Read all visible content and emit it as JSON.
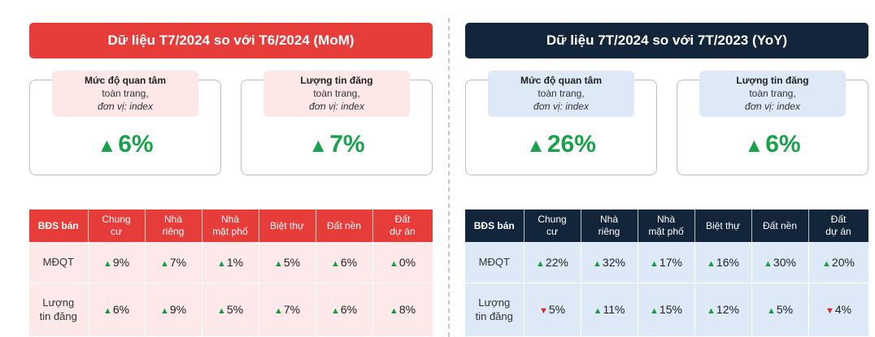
{
  "mom": {
    "title": "Dữ liệu T7/2024 so với T6/2024 (MoM)",
    "cards": [
      {
        "label1": "Mức độ quan tâm",
        "label2": "toàn trang,",
        "label3": "đơn vị: index",
        "arrow": "▲",
        "value": "6%"
      },
      {
        "label1": "Lượng tin đăng",
        "label2": "toàn trang,",
        "label3": "đơn vị: index",
        "arrow": "▲",
        "value": "7%"
      }
    ],
    "headers": [
      "BĐS bán",
      "Chung\ncư",
      "Nhà\nriêng",
      "Nhà\nmặt phố",
      "Biệt thự",
      "Đất nền",
      "Đất\ndự án"
    ],
    "rows": [
      {
        "label": "MĐQT",
        "cells": [
          {
            "dir": "up",
            "arrow": "▲",
            "value": "9%"
          },
          {
            "dir": "up",
            "arrow": "▲",
            "value": "7%"
          },
          {
            "dir": "up",
            "arrow": "▲",
            "value": "1%"
          },
          {
            "dir": "up",
            "arrow": "▲",
            "value": "5%"
          },
          {
            "dir": "up",
            "arrow": "▲",
            "value": "6%"
          },
          {
            "dir": "up",
            "arrow": "▲",
            "value": "0%"
          }
        ]
      },
      {
        "label": "Lượng\ntin đăng",
        "cells": [
          {
            "dir": "up",
            "arrow": "▲",
            "value": "6%"
          },
          {
            "dir": "up",
            "arrow": "▲",
            "value": "9%"
          },
          {
            "dir": "up",
            "arrow": "▲",
            "value": "5%"
          },
          {
            "dir": "up",
            "arrow": "▲",
            "value": "7%"
          },
          {
            "dir": "up",
            "arrow": "▲",
            "value": "6%"
          },
          {
            "dir": "up",
            "arrow": "▲",
            "value": "8%"
          }
        ]
      }
    ]
  },
  "yoy": {
    "title": "Dữ liệu 7T/2024 so với 7T/2023 (YoY)",
    "cards": [
      {
        "label1": "Mức độ quan tâm",
        "label2": "toàn trang,",
        "label3": "đơn vị: index",
        "arrow": "▲",
        "value": "26%"
      },
      {
        "label1": "Lượng tin đăng",
        "label2": "toàn trang,",
        "label3": "đơn vị: index",
        "arrow": "▲",
        "value": "6%"
      }
    ],
    "headers": [
      "BĐS bán",
      "Chung\ncư",
      "Nhà\nriêng",
      "Nhà\nmặt phố",
      "Biệt thự",
      "Đất nền",
      "Đất\ndự án"
    ],
    "rows": [
      {
        "label": "MĐQT",
        "cells": [
          {
            "dir": "up",
            "arrow": "▲",
            "value": "22%"
          },
          {
            "dir": "up",
            "arrow": "▲",
            "value": "32%"
          },
          {
            "dir": "up",
            "arrow": "▲",
            "value": "17%"
          },
          {
            "dir": "up",
            "arrow": "▲",
            "value": "16%"
          },
          {
            "dir": "up",
            "arrow": "▲",
            "value": "30%"
          },
          {
            "dir": "up",
            "arrow": "▲",
            "value": "20%"
          }
        ]
      },
      {
        "label": "Lượng\ntin đăng",
        "cells": [
          {
            "dir": "down",
            "arrow": "▼",
            "value": "5%"
          },
          {
            "dir": "up",
            "arrow": "▲",
            "value": "11%"
          },
          {
            "dir": "up",
            "arrow": "▲",
            "value": "15%"
          },
          {
            "dir": "up",
            "arrow": "▲",
            "value": "12%"
          },
          {
            "dir": "up",
            "arrow": "▲",
            "value": "5%"
          },
          {
            "dir": "down",
            "arrow": "▼",
            "value": "4%"
          }
        ]
      }
    ]
  },
  "colors": {
    "mom_accent": "#e63c3a",
    "yoy_accent": "#13253b",
    "up": "#1a9a45",
    "down": "#d32626"
  }
}
